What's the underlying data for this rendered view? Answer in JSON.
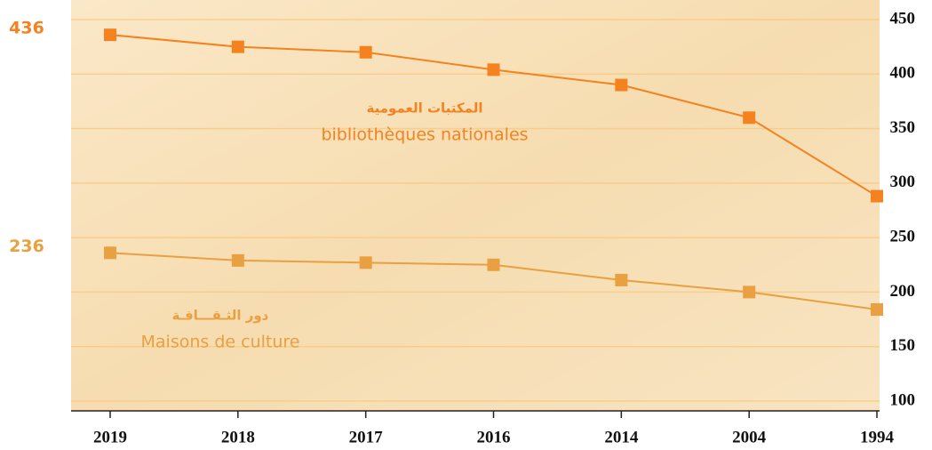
{
  "chart_data": {
    "type": "line",
    "categories": [
      "2019",
      "2018",
      "2017",
      "2016",
      "2014",
      "2004",
      "1994"
    ],
    "series": [
      {
        "name": "bibliothèques nationales",
        "name_ar": "المكتبات العمومية",
        "color": "#f4821f",
        "values": [
          436,
          425,
          420,
          404,
          390,
          360,
          288
        ],
        "value_labels": [
          "436",
          null,
          null,
          null,
          null,
          null,
          null
        ]
      },
      {
        "name": "Maisons de culture",
        "name_ar": "دور الثـقـــافـة",
        "color": "#e9a040",
        "values": [
          236,
          229,
          227,
          225,
          211,
          200,
          184
        ],
        "value_labels": [
          "236",
          null,
          null,
          null,
          null,
          null,
          null
        ]
      }
    ],
    "ylim": [
      100,
      450
    ],
    "yticks": [
      100,
      150,
      200,
      250,
      300,
      350,
      400,
      450
    ],
    "grid": true
  }
}
